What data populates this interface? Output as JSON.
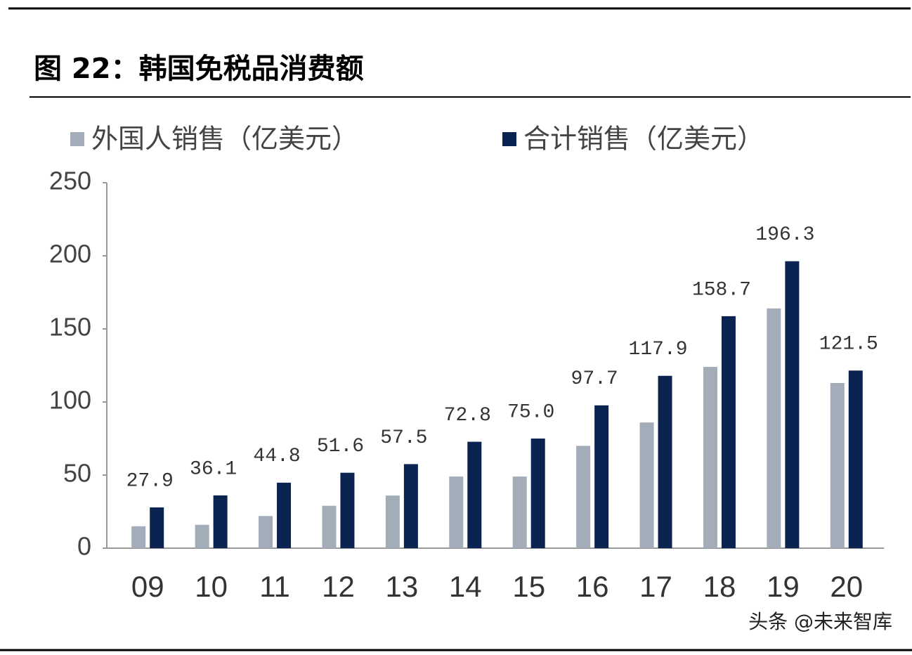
{
  "chart_data": {
    "type": "bar",
    "title": "图 22：韩国免税品消费额",
    "categories": [
      "09",
      "10",
      "11",
      "12",
      "13",
      "14",
      "15",
      "16",
      "17",
      "18",
      "19",
      "20"
    ],
    "series": [
      {
        "name": "外国人销售（亿美元）",
        "color": "#a3adb9",
        "values": [
          15,
          16,
          22,
          29,
          36,
          49,
          49,
          70,
          86,
          124,
          164,
          113
        ]
      },
      {
        "name": "合计销售（亿美元）",
        "color": "#0b2350",
        "values": [
          27.9,
          36.1,
          44.8,
          51.6,
          57.5,
          72.8,
          75,
          97.7,
          117.9,
          158.7,
          196.3,
          121.5
        ],
        "value_labels": [
          "27.9",
          "36.1",
          "44.8",
          "51.6",
          "57.5",
          "72.8",
          "75.0",
          "97.7",
          "117.9",
          "158.7",
          "196.3",
          "121.5"
        ]
      }
    ],
    "ylim": [
      0,
      250
    ],
    "yticks": [
      0,
      50,
      100,
      150,
      200,
      250
    ],
    "legend": "top",
    "grid": false,
    "watermark": "头条 @未来智库"
  }
}
